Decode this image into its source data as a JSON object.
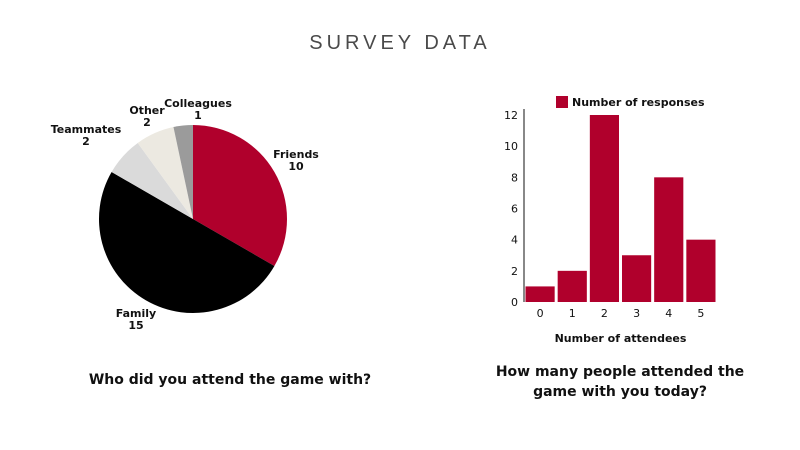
{
  "page": {
    "title": "SURVEY DATA"
  },
  "chart_data": [
    {
      "type": "pie",
      "title": "Who did you attend the game with?",
      "slices": [
        {
          "label": "Friends",
          "value": 10,
          "color": "#b0002c"
        },
        {
          "label": "Family",
          "value": 15,
          "color": "#000000"
        },
        {
          "label": "Teammates",
          "value": 2,
          "color": "#dadada"
        },
        {
          "label": "Other",
          "value": 2,
          "color": "#ece9e1"
        },
        {
          "label": "Colleagues",
          "value": 1,
          "color": "#9b9b9b"
        }
      ]
    },
    {
      "type": "bar",
      "title": "How many people attended the game with you today?",
      "categories": [
        "0",
        "1",
        "2",
        "3",
        "4",
        "5"
      ],
      "series": [
        {
          "name": "Number of responses",
          "values": [
            1,
            2,
            12,
            3,
            8,
            4
          ],
          "color": "#b0002c"
        }
      ],
      "xlabel": "Number of attendees",
      "ylabel": "",
      "ylim": [
        0,
        12
      ],
      "yticks": [
        0,
        2,
        4,
        6,
        8,
        10,
        12
      ],
      "grid": false,
      "legend": "top"
    }
  ]
}
